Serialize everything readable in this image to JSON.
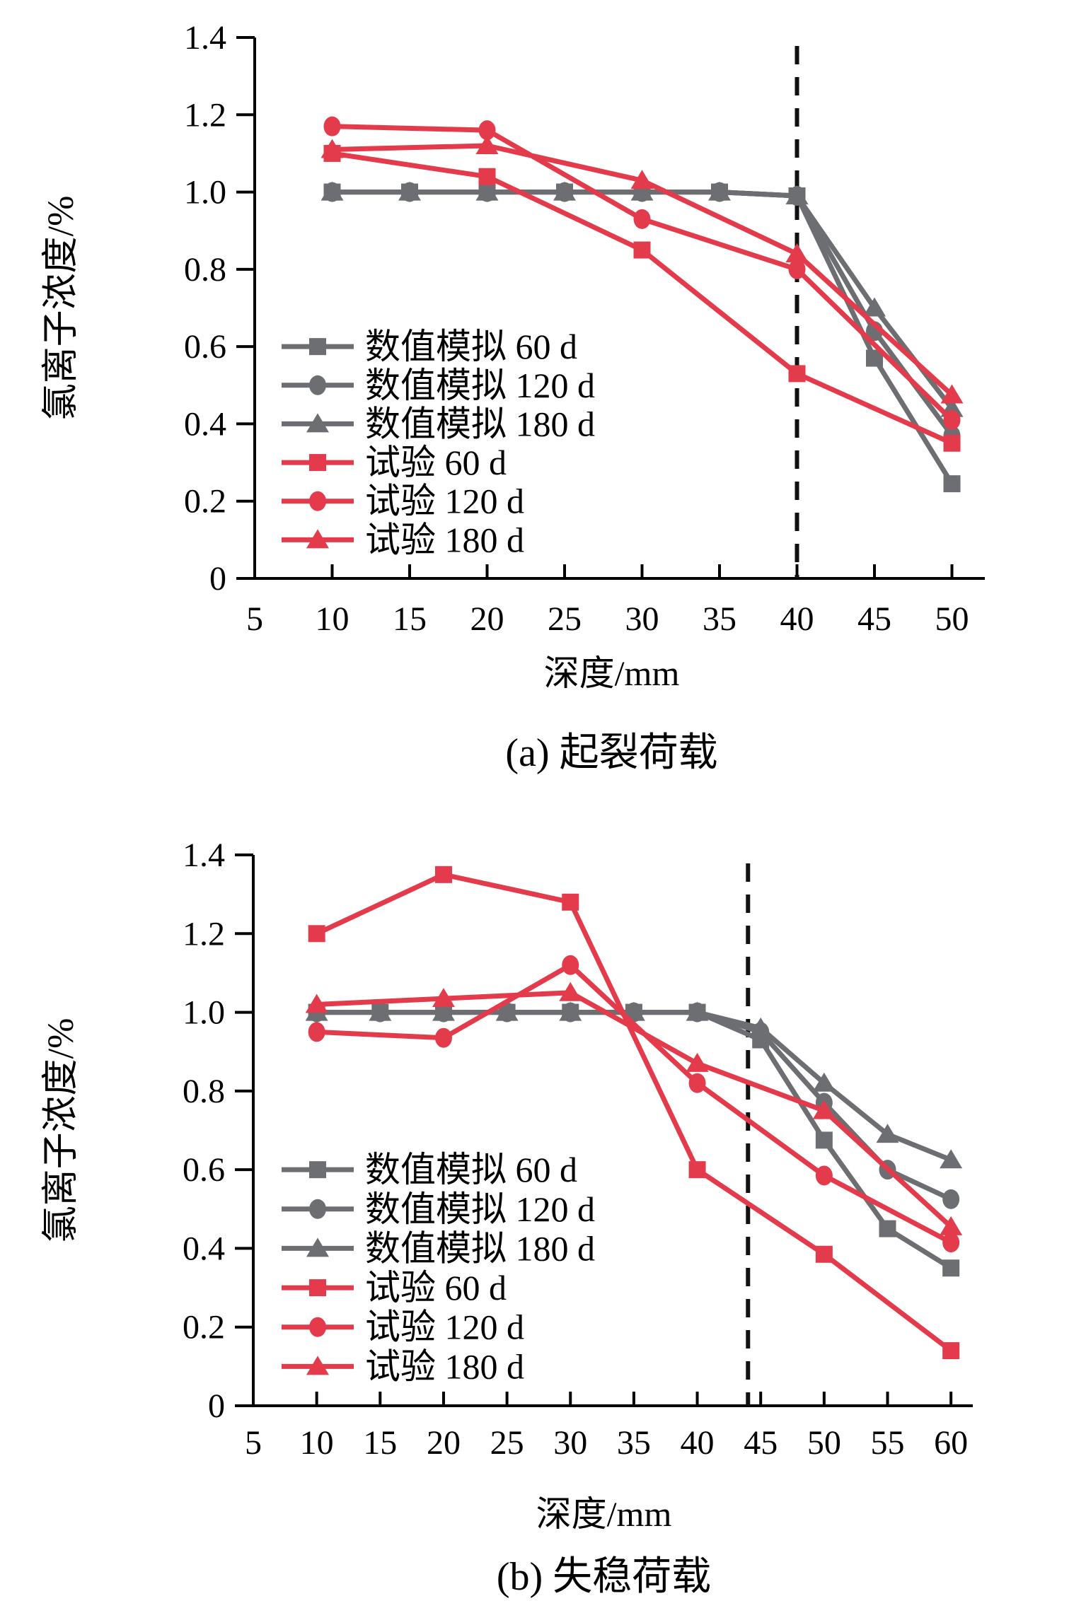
{
  "figure": {
    "description": "Two line charts comparing simulated and experimental chloride ion concentration versus depth",
    "colors": {
      "simulation_gray": "#6d6e71",
      "experiment_red": "#e43b4c",
      "dashed_line": "#111111",
      "axis": "#000000"
    }
  },
  "chart_data": [
    {
      "type": "line",
      "panel_label": "(a)",
      "caption": "(a) 起裂荷载",
      "xlabel": "深度/mm",
      "ylabel": "氯离子浓度/%",
      "xlim": [
        5,
        52
      ],
      "ylim": [
        0,
        1.4
      ],
      "xticks": [
        5,
        10,
        15,
        20,
        25,
        30,
        35,
        40,
        45,
        50
      ],
      "ytick_labels": [
        "0",
        "0.2",
        "0.4",
        "0.6",
        "0.8",
        "1.0",
        "1.2",
        "1.4"
      ],
      "ytick_step": 0.2,
      "grid": false,
      "legend_position": "inside-lower-left",
      "dashed_line_x": 40,
      "series": [
        {
          "name": "数值模拟 60 d",
          "color": "#6d6e71",
          "marker": "square",
          "x": [
            10,
            15,
            20,
            25,
            30,
            35,
            40,
            45,
            50
          ],
          "y": [
            1.0,
            1.0,
            1.0,
            1.0,
            1.0,
            1.0,
            0.99,
            0.57,
            0.245
          ]
        },
        {
          "name": "数值模拟 120 d",
          "color": "#6d6e71",
          "marker": "circle",
          "x": [
            10,
            15,
            20,
            25,
            30,
            35,
            40,
            45,
            50
          ],
          "y": [
            1.0,
            1.0,
            1.0,
            1.0,
            1.0,
            1.0,
            0.99,
            0.64,
            0.37
          ]
        },
        {
          "name": "数值模拟 180 d",
          "color": "#6d6e71",
          "marker": "triangle",
          "x": [
            10,
            15,
            20,
            25,
            30,
            35,
            40,
            45,
            50
          ],
          "y": [
            1.0,
            1.0,
            1.0,
            1.0,
            1.0,
            1.0,
            0.99,
            0.7,
            0.44
          ]
        },
        {
          "name": "试验 60 d",
          "color": "#e43b4c",
          "marker": "square",
          "x": [
            10,
            20,
            30,
            40,
            50
          ],
          "y": [
            1.1,
            1.04,
            0.85,
            0.53,
            0.35
          ]
        },
        {
          "name": "试验 120 d",
          "color": "#e43b4c",
          "marker": "circle",
          "x": [
            10,
            20,
            30,
            40,
            50
          ],
          "y": [
            1.17,
            1.16,
            0.93,
            0.8,
            0.41
          ]
        },
        {
          "name": "试验 180 d",
          "color": "#e43b4c",
          "marker": "triangle",
          "x": [
            10,
            20,
            30,
            40,
            50
          ],
          "y": [
            1.11,
            1.12,
            1.03,
            0.84,
            0.475
          ]
        }
      ]
    },
    {
      "type": "line",
      "panel_label": "(b)",
      "caption": "(b) 失稳荷载",
      "xlabel": "深度/mm",
      "ylabel": "氯离子浓度/%",
      "xlim": [
        5,
        62
      ],
      "ylim": [
        0,
        1.4
      ],
      "xticks": [
        5,
        10,
        15,
        20,
        25,
        30,
        35,
        40,
        45,
        50,
        55,
        60
      ],
      "ytick_labels": [
        "0",
        "0.2",
        "0.4",
        "0.6",
        "0.8",
        "1.0",
        "1.2",
        "1.4"
      ],
      "ytick_step": 0.2,
      "grid": false,
      "legend_position": "inside-lower-left",
      "dashed_line_x": 44,
      "series": [
        {
          "name": "数值模拟 60 d",
          "color": "#6d6e71",
          "marker": "square",
          "x": [
            10,
            15,
            20,
            25,
            30,
            35,
            40,
            45,
            50,
            55,
            60
          ],
          "y": [
            1.0,
            1.0,
            1.0,
            1.0,
            1.0,
            1.0,
            1.0,
            0.93,
            0.675,
            0.45,
            0.35
          ]
        },
        {
          "name": "数值模拟 120 d",
          "color": "#6d6e71",
          "marker": "circle",
          "x": [
            10,
            15,
            20,
            25,
            30,
            35,
            40,
            45,
            50,
            55,
            60
          ],
          "y": [
            1.0,
            1.0,
            1.0,
            1.0,
            1.0,
            1.0,
            1.0,
            0.95,
            0.77,
            0.6,
            0.525
          ]
        },
        {
          "name": "数值模拟 180 d",
          "color": "#6d6e71",
          "marker": "triangle",
          "x": [
            10,
            15,
            20,
            25,
            30,
            35,
            40,
            45,
            50,
            55,
            60
          ],
          "y": [
            1.0,
            1.0,
            1.0,
            1.0,
            1.0,
            1.0,
            1.0,
            0.96,
            0.82,
            0.69,
            0.625
          ]
        },
        {
          "name": "试验 60 d",
          "color": "#e43b4c",
          "marker": "square",
          "x": [
            10,
            20,
            30,
            40,
            50,
            60
          ],
          "y": [
            1.2,
            1.35,
            1.28,
            0.6,
            0.385,
            0.14
          ]
        },
        {
          "name": "试验 120 d",
          "color": "#e43b4c",
          "marker": "circle",
          "x": [
            10,
            20,
            30,
            40,
            50,
            60
          ],
          "y": [
            0.95,
            0.935,
            1.12,
            0.82,
            0.585,
            0.415
          ]
        },
        {
          "name": "试验 180 d",
          "color": "#e43b4c",
          "marker": "triangle",
          "x": [
            10,
            20,
            30,
            40,
            50,
            60
          ],
          "y": [
            1.02,
            1.035,
            1.05,
            0.87,
            0.75,
            0.455
          ]
        }
      ]
    }
  ]
}
